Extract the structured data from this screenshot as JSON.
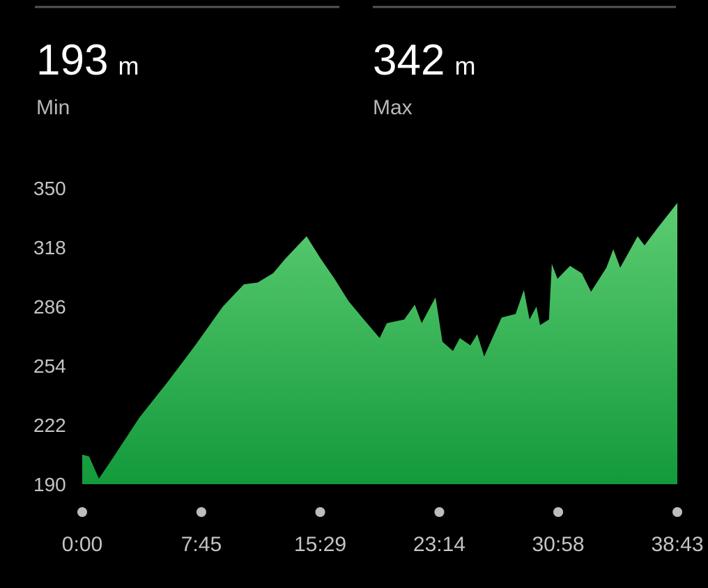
{
  "stats": [
    {
      "value": "193",
      "unit": "m",
      "label": "Min"
    },
    {
      "value": "342",
      "unit": "m",
      "label": "Max"
    }
  ],
  "chart_data": {
    "type": "area",
    "x": [
      0,
      27,
      65,
      114,
      223,
      332,
      441,
      549,
      631,
      685,
      745,
      794,
      876,
      930,
      985,
      1039,
      1093,
      1161,
      1189,
      1257,
      1298,
      1325,
      1379,
      1406,
      1447,
      1474,
      1515,
      1542,
      1569,
      1637,
      1692,
      1724,
      1746,
      1773,
      1787,
      1822,
      1833,
      1855,
      1904,
      1950,
      1986,
      2046,
      2073,
      2100,
      2168,
      2195,
      2249,
      2323
    ],
    "y": [
      206,
      205,
      193,
      203,
      226,
      245,
      265,
      286,
      298,
      299,
      304,
      312,
      324,
      312,
      301,
      289,
      280,
      269,
      277,
      279,
      287,
      277,
      291,
      267,
      262,
      269,
      265,
      271,
      259,
      280,
      282,
      295,
      279,
      286,
      276,
      279,
      309,
      301,
      308,
      304,
      294,
      307,
      317,
      307,
      324,
      319,
      329,
      342
    ],
    "colors": [
      "#5dcc72",
      "#129a3b"
    ],
    "xlim": [
      0,
      2323
    ],
    "xticks": [
      {
        "value": 0,
        "label": "0:00"
      },
      {
        "value": 465,
        "label": "7:45"
      },
      {
        "value": 929,
        "label": "15:29"
      },
      {
        "value": 1394,
        "label": "23:14"
      },
      {
        "value": 1858,
        "label": "30:58"
      },
      {
        "value": 2323,
        "label": "38:43"
      }
    ],
    "ylim": [
      190,
      350
    ],
    "yticks": [
      190,
      222,
      254,
      286,
      318,
      350
    ]
  }
}
